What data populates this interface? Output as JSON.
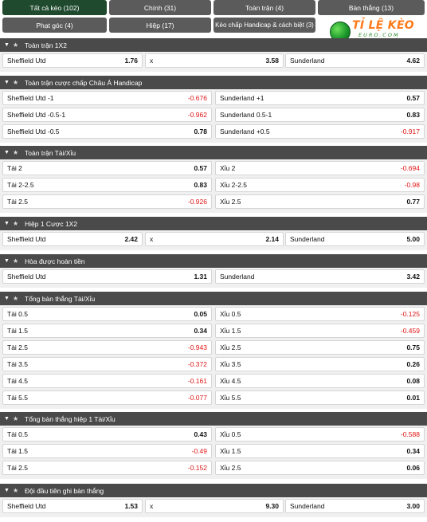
{
  "tabs": [
    {
      "label": "Tất cả kèo (102)",
      "active": true
    },
    {
      "label": "Chính (31)"
    },
    {
      "label": "Toàn trận (4)"
    },
    {
      "label": "Bàn thắng (13)"
    },
    {
      "label": "Phạt góc (4)"
    },
    {
      "label": "Hiệp (17)"
    },
    {
      "label": "Kèo chấp Handicap & cách biệt (3)"
    }
  ],
  "logo": {
    "brand": "TỈ LỆ KÈO",
    "sub": "EURO.COM"
  },
  "sections": [
    {
      "title": "Toàn trận 1X2",
      "rows": [
        [
          [
            "Sheffield Utd",
            "1.76"
          ],
          [
            "x",
            "3.58"
          ],
          [
            "Sunderland",
            "4.62"
          ]
        ]
      ]
    },
    {
      "title": "Toàn trận cược chấp Châu Á Handicap",
      "rows": [
        [
          [
            "Sheffield Utd -1",
            "-0.676"
          ],
          [
            "Sunderland +1",
            "0.57"
          ]
        ],
        [
          [
            "Sheffield Utd -0.5-1",
            "-0.962"
          ],
          [
            "Sunderland 0.5-1",
            "0.83"
          ]
        ],
        [
          [
            "Sheffield Utd -0.5",
            "0.78"
          ],
          [
            "Sunderland +0.5",
            "-0.917"
          ]
        ]
      ]
    },
    {
      "title": "Toàn trận Tài/Xỉu",
      "rows": [
        [
          [
            "Tài 2",
            "0.57"
          ],
          [
            "Xỉu 2",
            "-0.694"
          ]
        ],
        [
          [
            "Tài 2-2.5",
            "0.83"
          ],
          [
            "Xỉu 2-2.5",
            "-0.98"
          ]
        ],
        [
          [
            "Tài 2.5",
            "-0.926"
          ],
          [
            "Xỉu 2.5",
            "0.77"
          ]
        ]
      ]
    },
    {
      "title": "Hiệp 1 Cược 1X2",
      "rows": [
        [
          [
            "Sheffield Utd",
            "2.42"
          ],
          [
            "x",
            "2.14"
          ],
          [
            "Sunderland",
            "5.00"
          ]
        ]
      ]
    },
    {
      "title": "Hòa được hoàn tiền",
      "rows": [
        [
          [
            "Sheffield Utd",
            "1.31"
          ],
          [
            "Sunderland",
            "3.42"
          ]
        ]
      ]
    },
    {
      "title": "Tổng bàn thắng Tài/Xỉu",
      "rows": [
        [
          [
            "Tài 0.5",
            "0.05"
          ],
          [
            "Xỉu 0.5",
            "-0.125"
          ]
        ],
        [
          [
            "Tài 1.5",
            "0.34"
          ],
          [
            "Xỉu 1.5",
            "-0.459"
          ]
        ],
        [
          [
            "Tài 2.5",
            "-0.943"
          ],
          [
            "Xỉu 2.5",
            "0.75"
          ]
        ],
        [
          [
            "Tài 3.5",
            "-0.372"
          ],
          [
            "Xỉu 3.5",
            "0.26"
          ]
        ],
        [
          [
            "Tài 4.5",
            "-0.161"
          ],
          [
            "Xỉu 4.5",
            "0.08"
          ]
        ],
        [
          [
            "Tài 5.5",
            "-0.077"
          ],
          [
            "Xỉu 5.5",
            "0.01"
          ]
        ]
      ]
    },
    {
      "title": "Tổng bàn thắng hiệp 1 Tài/Xỉu",
      "rows": [
        [
          [
            "Tài 0.5",
            "0.43"
          ],
          [
            "Xỉu 0.5",
            "-0.588"
          ]
        ],
        [
          [
            "Tài 1.5",
            "-0.49"
          ],
          [
            "Xỉu 1.5",
            "0.34"
          ]
        ],
        [
          [
            "Tài 2.5",
            "-0.152"
          ],
          [
            "Xỉu 2.5",
            "0.06"
          ]
        ]
      ]
    },
    {
      "title": "Đội đầu tiên ghi bàn thắng",
      "rows": [
        [
          [
            "Sheffield Utd",
            "1.53"
          ],
          [
            "x",
            "9.30"
          ],
          [
            "Sunderland",
            "3.00"
          ]
        ]
      ]
    }
  ],
  "colors": {
    "tab_bg": "#5b5b5b",
    "tab_active": "#1f4a2e",
    "header_bg": "#4a4a4a",
    "negative": "#e01515"
  },
  "icons": {
    "collapse": "chevron-down-icon",
    "favorite": "star-icon"
  }
}
